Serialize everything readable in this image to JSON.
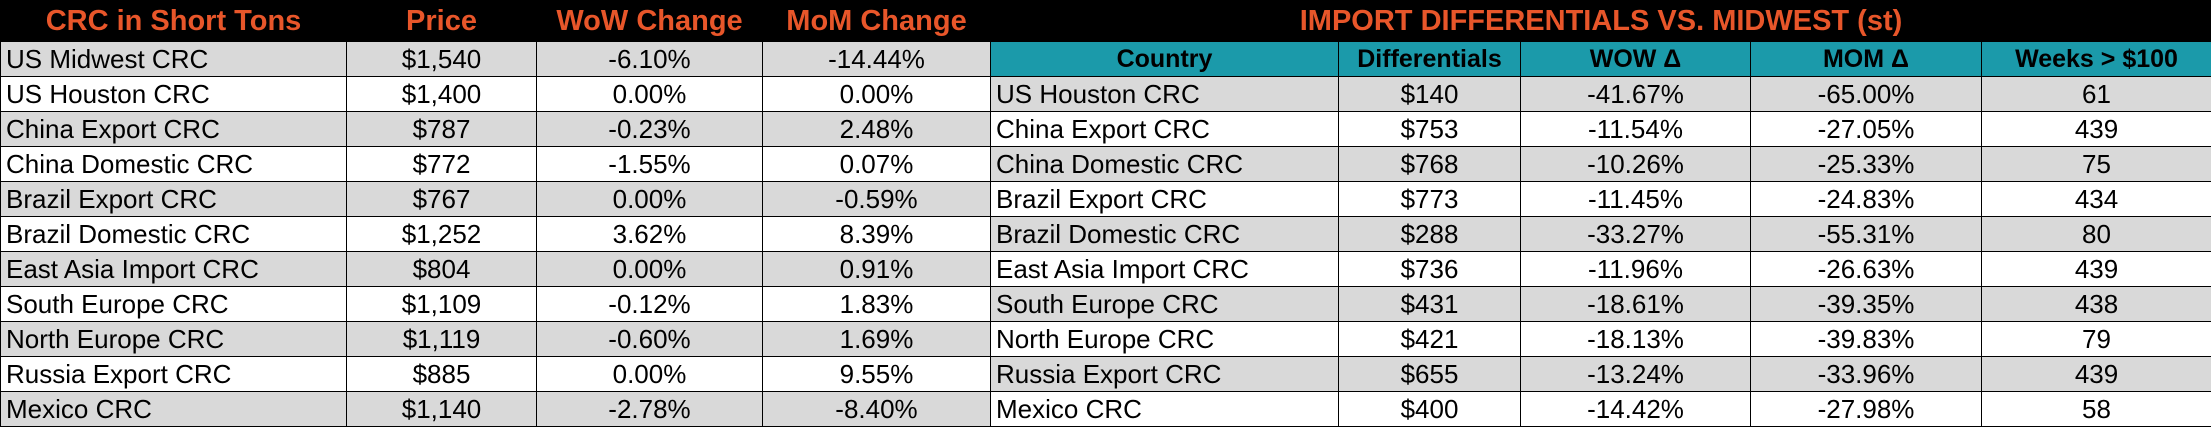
{
  "left": {
    "headers": [
      "CRC in Short Tons",
      "Price",
      "WoW Change",
      "MoM Change"
    ],
    "rows": [
      {
        "name": "US Midwest CRC",
        "price": "$1,540",
        "wow": "-6.10%",
        "mom": "-14.44%"
      },
      {
        "name": "US Houston CRC",
        "price": "$1,400",
        "wow": "0.00%",
        "mom": "0.00%"
      },
      {
        "name": "China Export CRC",
        "price": "$787",
        "wow": "-0.23%",
        "mom": "2.48%"
      },
      {
        "name": "China Domestic CRC",
        "price": "$772",
        "wow": "-1.55%",
        "mom": "0.07%"
      },
      {
        "name": "Brazil Export CRC",
        "price": "$767",
        "wow": "0.00%",
        "mom": "-0.59%"
      },
      {
        "name": "Brazil Domestic CRC",
        "price": "$1,252",
        "wow": "3.62%",
        "mom": "8.39%"
      },
      {
        "name": "East Asia Import CRC",
        "price": "$804",
        "wow": "0.00%",
        "mom": "0.91%"
      },
      {
        "name": "South Europe CRC",
        "price": "$1,109",
        "wow": "-0.12%",
        "mom": "1.83%"
      },
      {
        "name": "North Europe CRC",
        "price": "$1,119",
        "wow": "-0.60%",
        "mom": "1.69%"
      },
      {
        "name": "Russia Export CRC",
        "price": "$885",
        "wow": "0.00%",
        "mom": "9.55%"
      },
      {
        "name": "Mexico CRC",
        "price": "$1,140",
        "wow": "-2.78%",
        "mom": "-8.40%"
      }
    ]
  },
  "right": {
    "title": "IMPORT DIFFERENTIALS VS. MIDWEST (st)",
    "headers": [
      "Country",
      "Differentials",
      "WOW Δ",
      "MOM Δ",
      "Weeks > $100"
    ],
    "rows": [
      {
        "name": "US Houston CRC",
        "diff": "$140",
        "wow": "-41.67%",
        "mom": "-65.00%",
        "weeks": "61"
      },
      {
        "name": "China Export CRC",
        "diff": "$753",
        "wow": "-11.54%",
        "mom": "-27.05%",
        "weeks": "439"
      },
      {
        "name": "China Domestic CRC",
        "diff": "$768",
        "wow": "-10.26%",
        "mom": "-25.33%",
        "weeks": "75"
      },
      {
        "name": "Brazil Export CRC",
        "diff": "$773",
        "wow": "-11.45%",
        "mom": "-24.83%",
        "weeks": "434"
      },
      {
        "name": "Brazil Domestic CRC",
        "diff": "$288",
        "wow": "-33.27%",
        "mom": "-55.31%",
        "weeks": "80"
      },
      {
        "name": "East Asia Import CRC",
        "diff": "$736",
        "wow": "-11.96%",
        "mom": "-26.63%",
        "weeks": "439"
      },
      {
        "name": "South Europe CRC",
        "diff": "$431",
        "wow": "-18.61%",
        "mom": "-39.35%",
        "weeks": "438"
      },
      {
        "name": "North Europe CRC",
        "diff": "$421",
        "wow": "-18.13%",
        "mom": "-39.83%",
        "weeks": "79"
      },
      {
        "name": "Russia Export CRC",
        "diff": "$655",
        "wow": "-13.24%",
        "mom": "-33.96%",
        "weeks": "439"
      },
      {
        "name": "Mexico CRC",
        "diff": "$400",
        "wow": "-14.42%",
        "mom": "-27.98%",
        "weeks": "58"
      }
    ]
  },
  "colors": {
    "header_bg": "#000000",
    "header_text": "#e8562a",
    "subheader_bg": "#1b9aaa",
    "row_gray": "#d9d9d9",
    "row_white": "#ffffff"
  }
}
